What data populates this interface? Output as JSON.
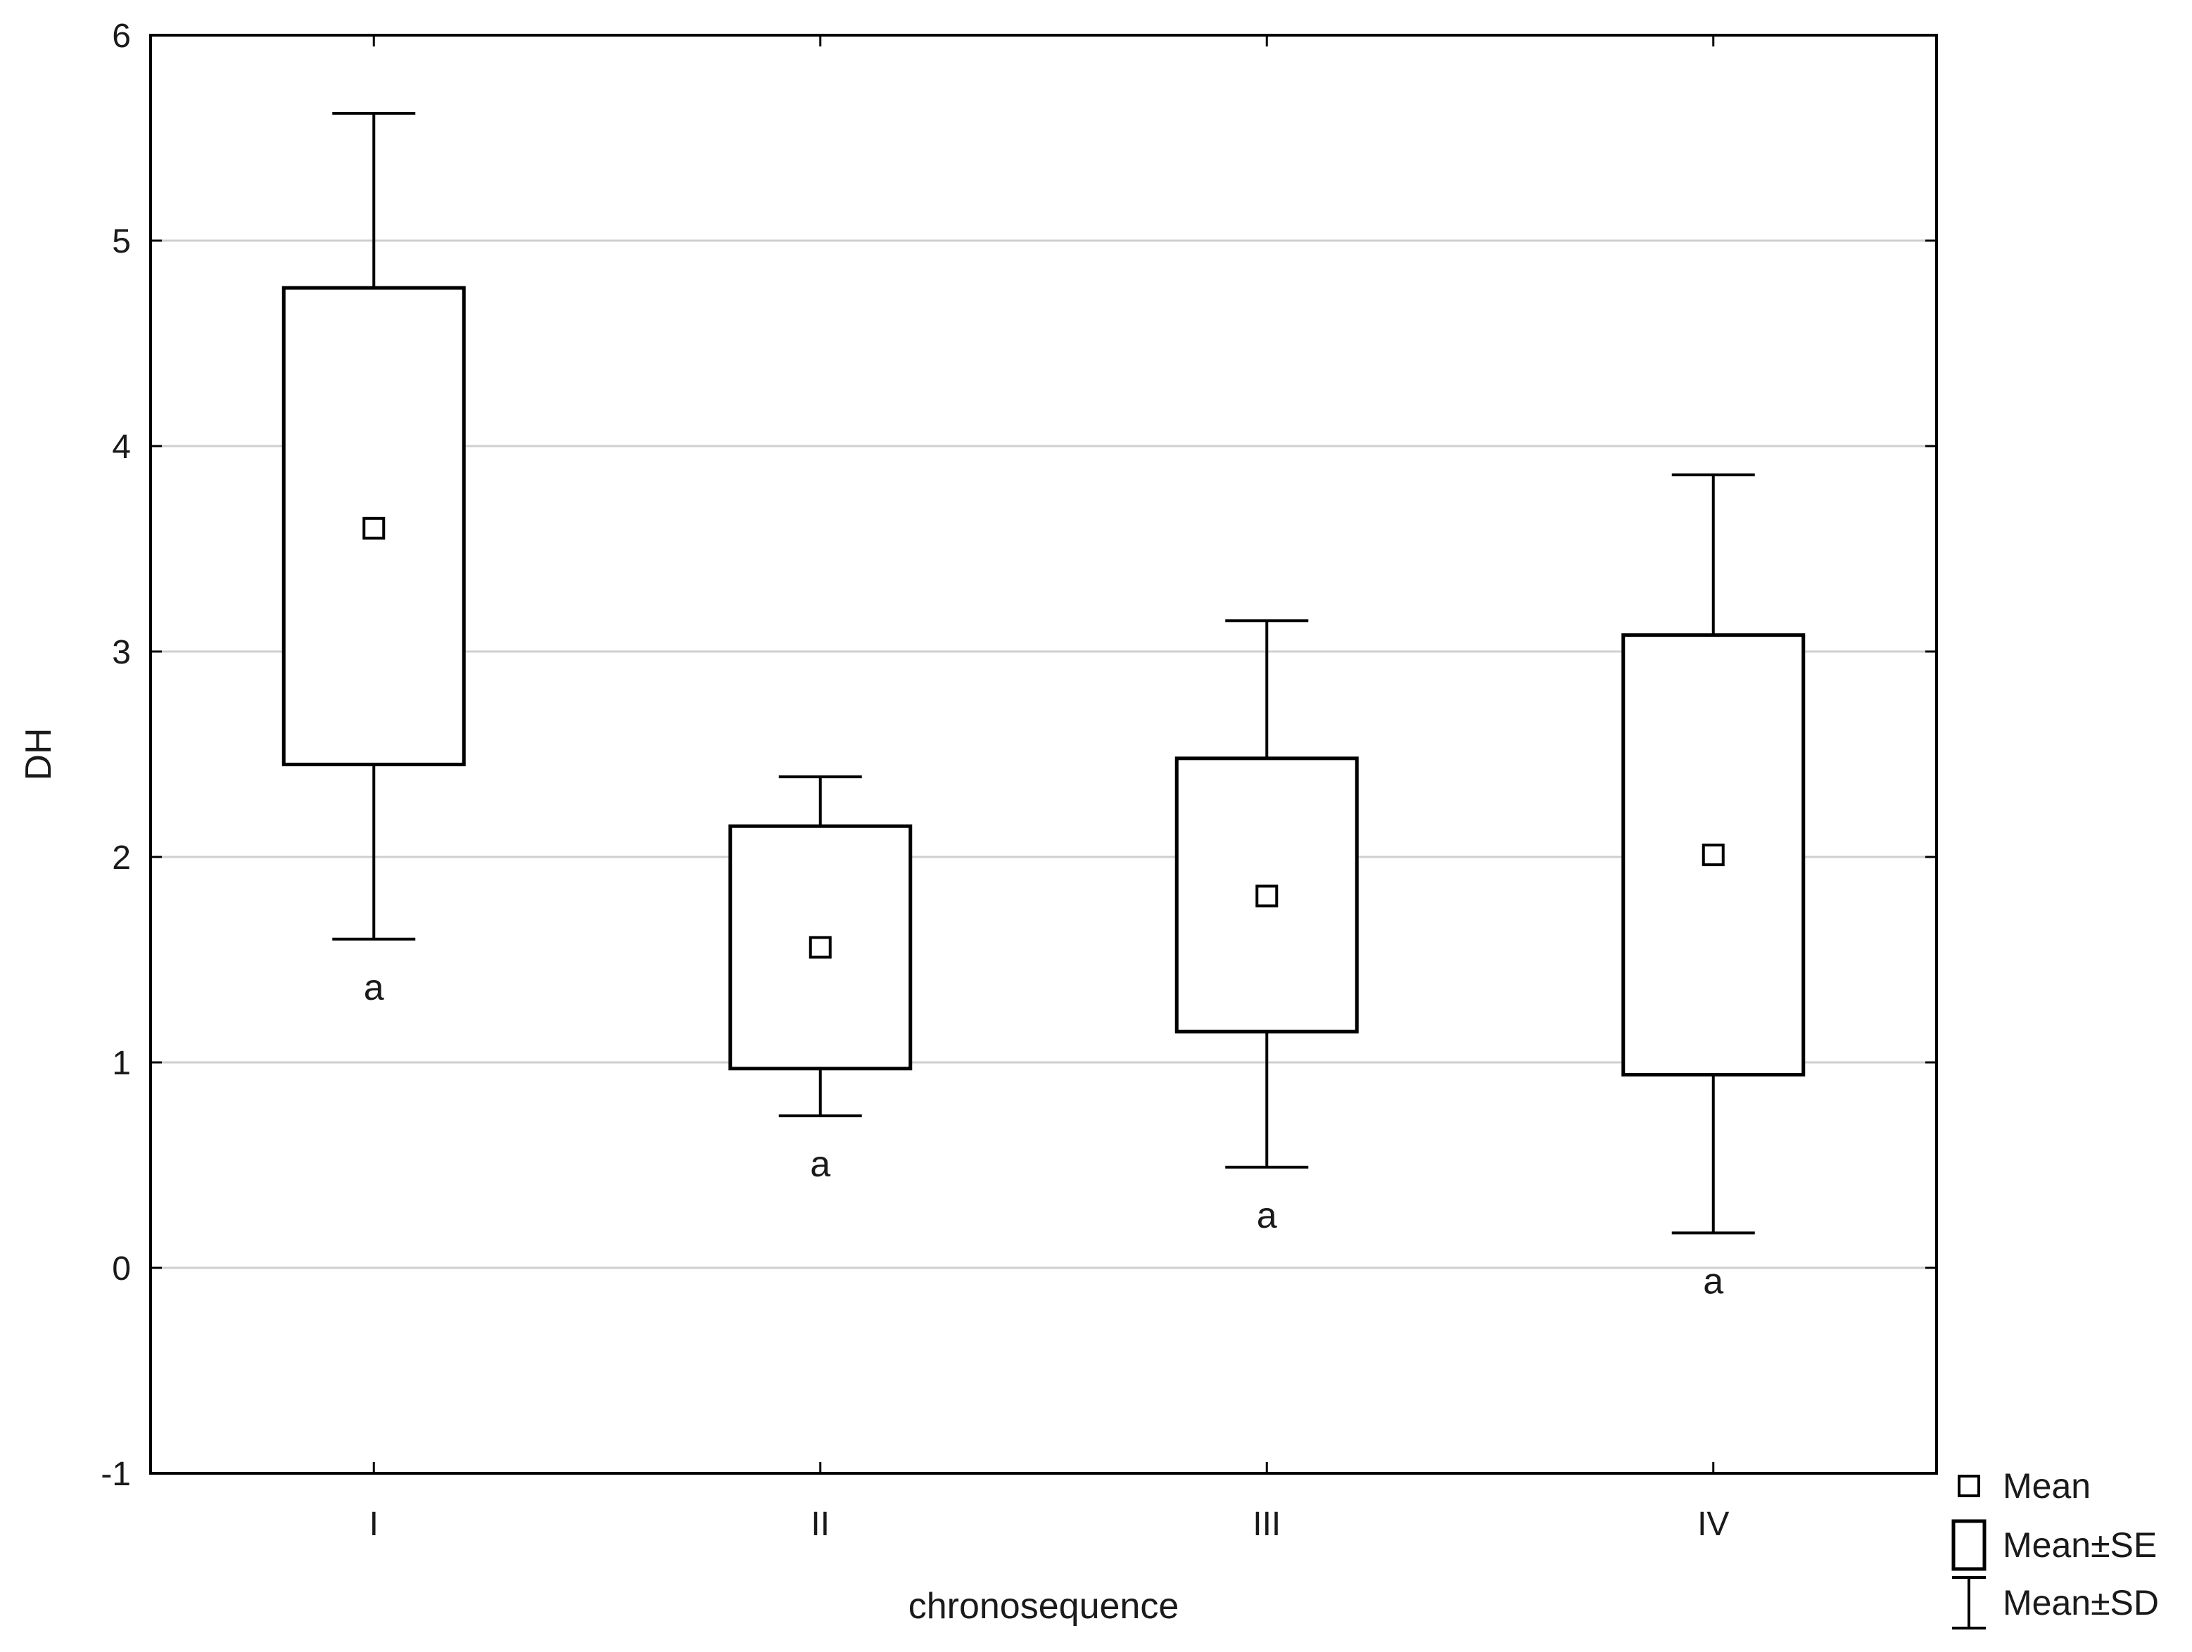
{
  "chart_data": {
    "type": "box",
    "xlabel": "chronosequence",
    "ylabel": "DH",
    "ylim": [
      -1,
      6
    ],
    "yticks": [
      -1,
      0,
      1,
      2,
      3,
      4,
      5,
      6
    ],
    "grid": true,
    "legend_position": "bottom-right, outside plot",
    "categories": [
      "I",
      "II",
      "III",
      "IV"
    ],
    "series": [
      {
        "category": "I",
        "mean": 3.6,
        "se_low": 2.45,
        "se_high": 4.77,
        "sd_low": 1.6,
        "sd_high": 5.62,
        "group_label": "a"
      },
      {
        "category": "II",
        "mean": 1.56,
        "se_low": 0.97,
        "se_high": 2.15,
        "sd_low": 0.74,
        "sd_high": 2.39,
        "group_label": "a"
      },
      {
        "category": "III",
        "mean": 1.81,
        "se_low": 1.15,
        "se_high": 2.48,
        "sd_low": 0.49,
        "sd_high": 3.15,
        "group_label": "a"
      },
      {
        "category": "IV",
        "mean": 2.01,
        "se_low": 0.94,
        "se_high": 3.08,
        "sd_low": 0.17,
        "sd_high": 3.86,
        "group_label": "a"
      }
    ],
    "legend": [
      {
        "key": "mean",
        "label": "Mean"
      },
      {
        "key": "se",
        "label": "Mean±SE"
      },
      {
        "key": "sd",
        "label": "Mean±SD"
      }
    ]
  }
}
